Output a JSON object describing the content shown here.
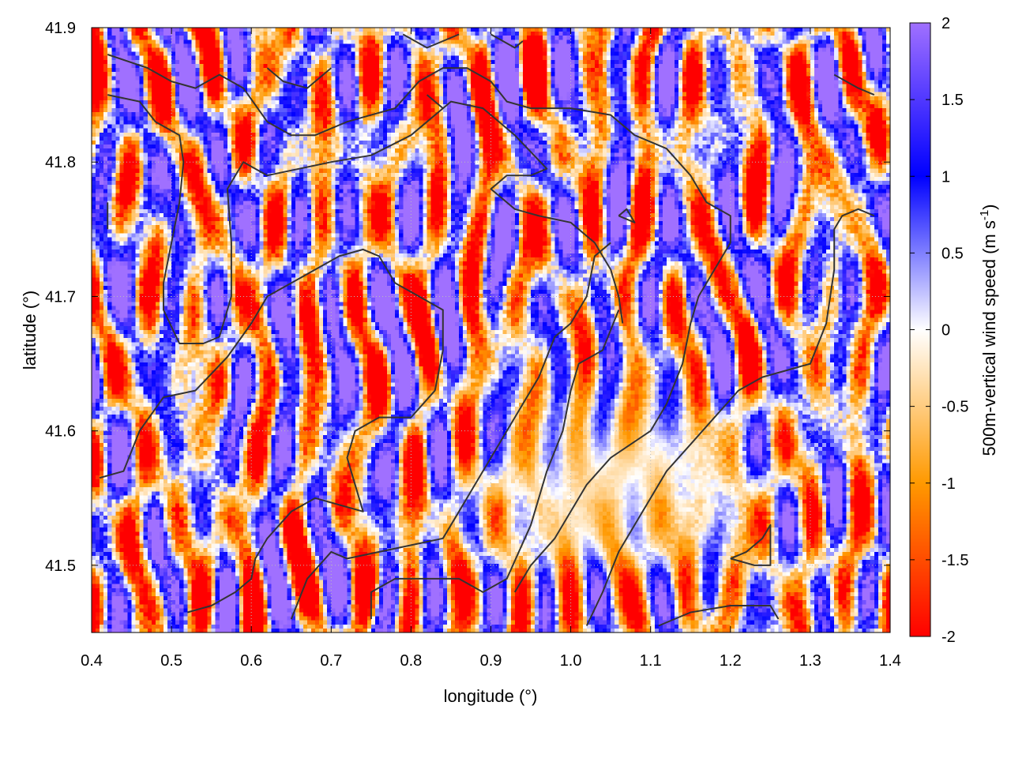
{
  "chart_data": {
    "type": "heatmap",
    "title": "",
    "xlabel": "longitude (°)",
    "ylabel": "latitude (°)",
    "xlim": [
      0.4,
      1.4
    ],
    "ylim": [
      41.45,
      41.9
    ],
    "xticks": [
      "0.4",
      "0.5",
      "0.6",
      "0.7",
      "0.8",
      "0.9",
      "1.0",
      "1.1",
      "1.2",
      "1.3",
      "1.4"
    ],
    "yticks": [
      "41.5",
      "41.6",
      "41.7",
      "41.8",
      "41.9"
    ],
    "ytick_values": [
      41.5,
      41.6,
      41.7,
      41.8,
      41.9
    ],
    "grid": true,
    "colorbar": {
      "label_main": "500m-vertical wind speed (m s",
      "label_sup": "-1",
      "label_close": ")",
      "range": [
        -2,
        2
      ],
      "ticks": [
        "2",
        "1.5",
        "1",
        "0.5",
        "0",
        "-0.5",
        "-1",
        "-1.5",
        "-2"
      ],
      "tick_values": [
        2,
        1.5,
        1,
        0.5,
        0,
        -0.5,
        -1,
        -1.5,
        -2
      ],
      "colors": {
        "minus2": "#ff0000",
        "minus1": "#ff9900",
        "zero": "#ffffff",
        "plus1": "#0000ff",
        "plus2": "#a070ff"
      }
    },
    "field_description": "Alternating bands of updrafts (blue/purple) and downdrafts (orange/red) over most of the domain; a broad weak-downdraft region (pale orange/white) in the south-central valley around lon 0.9-1.2, lat 41.47-41.65.",
    "contour_color": "#333333",
    "contours": [
      [
        [
          0.42,
          41.88
        ],
        [
          0.47,
          41.87
        ],
        [
          0.5,
          41.86
        ],
        [
          0.53,
          41.855
        ],
        [
          0.56,
          41.865
        ],
        [
          0.59,
          41.855
        ],
        [
          0.62,
          41.83
        ],
        [
          0.65,
          41.82
        ],
        [
          0.68,
          41.82
        ],
        [
          0.72,
          41.83
        ],
        [
          0.75,
          41.835
        ],
        [
          0.78,
          41.84
        ],
        [
          0.81,
          41.86
        ],
        [
          0.84,
          41.87
        ],
        [
          0.87,
          41.87
        ],
        [
          0.9,
          41.86
        ],
        [
          0.92,
          41.845
        ],
        [
          0.95,
          41.84
        ],
        [
          1.0,
          41.84
        ],
        [
          1.05,
          41.835
        ],
        [
          1.08,
          41.82
        ],
        [
          1.12,
          41.81
        ],
        [
          1.15,
          41.79
        ],
        [
          1.17,
          41.77
        ],
        [
          1.2,
          41.76
        ],
        [
          1.2,
          41.74
        ],
        [
          1.18,
          41.72
        ],
        [
          1.16,
          41.7
        ],
        [
          1.15,
          41.68
        ],
        [
          1.14,
          41.65
        ],
        [
          1.12,
          41.62
        ],
        [
          1.1,
          41.6
        ],
        [
          1.05,
          41.58
        ],
        [
          1.02,
          41.56
        ],
        [
          1.0,
          41.54
        ],
        [
          0.98,
          41.52
        ],
        [
          0.95,
          41.5
        ],
        [
          0.93,
          41.48
        ]
      ],
      [
        [
          0.62,
          41.87
        ],
        [
          0.64,
          41.86
        ],
        [
          0.67,
          41.855
        ],
        [
          0.7,
          41.87
        ]
      ],
      [
        [
          0.79,
          41.895
        ],
        [
          0.82,
          41.885
        ],
        [
          0.86,
          41.895
        ]
      ],
      [
        [
          0.9,
          41.895
        ],
        [
          0.93,
          41.885
        ],
        [
          0.94,
          41.89
        ]
      ],
      [
        [
          0.42,
          41.85
        ],
        [
          0.46,
          41.845
        ],
        [
          0.48,
          41.83
        ],
        [
          0.51,
          41.82
        ],
        [
          0.515,
          41.8
        ],
        [
          0.51,
          41.77
        ],
        [
          0.5,
          41.74
        ],
        [
          0.49,
          41.71
        ],
        [
          0.49,
          41.69
        ],
        [
          0.51,
          41.665
        ],
        [
          0.54,
          41.665
        ],
        [
          0.56,
          41.67
        ],
        [
          0.575,
          41.7
        ],
        [
          0.575,
          41.74
        ],
        [
          0.57,
          41.78
        ],
        [
          0.59,
          41.8
        ],
        [
          0.62,
          41.79
        ],
        [
          0.66,
          41.795
        ],
        [
          0.7,
          41.8
        ],
        [
          0.75,
          41.805
        ],
        [
          0.8,
          41.82
        ],
        [
          0.85,
          41.845
        ],
        [
          0.89,
          41.84
        ],
        [
          0.93,
          41.82
        ],
        [
          0.97,
          41.795
        ],
        [
          0.95,
          41.79
        ],
        [
          0.92,
          41.79
        ],
        [
          0.9,
          41.78
        ],
        [
          0.93,
          41.765
        ],
        [
          0.96,
          41.76
        ],
        [
          1.0,
          41.755
        ],
        [
          1.03,
          41.74
        ],
        [
          1.05,
          41.72
        ],
        [
          1.06,
          41.7
        ],
        [
          1.065,
          41.68
        ]
      ],
      [
        [
          0.42,
          41.75
        ],
        [
          0.42,
          41.77
        ]
      ],
      [
        [
          0.41,
          41.565
        ],
        [
          0.44,
          41.57
        ],
        [
          0.46,
          41.6
        ],
        [
          0.49,
          41.625
        ],
        [
          0.53,
          41.63
        ],
        [
          0.57,
          41.655
        ],
        [
          0.6,
          41.68
        ],
        [
          0.62,
          41.7
        ],
        [
          0.65,
          41.71
        ],
        [
          0.68,
          41.72
        ],
        [
          0.71,
          41.73
        ],
        [
          0.74,
          41.735
        ],
        [
          0.76,
          41.73
        ],
        [
          0.78,
          41.71
        ],
        [
          0.81,
          41.7
        ],
        [
          0.84,
          41.69
        ],
        [
          0.84,
          41.66
        ],
        [
          0.83,
          41.63
        ],
        [
          0.8,
          41.61
        ],
        [
          0.76,
          41.61
        ],
        [
          0.73,
          41.6
        ],
        [
          0.72,
          41.58
        ],
        [
          0.73,
          41.56
        ],
        [
          0.74,
          41.54
        ],
        [
          0.71,
          41.545
        ],
        [
          0.68,
          41.55
        ],
        [
          0.65,
          41.54
        ],
        [
          0.62,
          41.52
        ],
        [
          0.605,
          41.505
        ],
        [
          0.6,
          41.49
        ],
        [
          0.58,
          41.48
        ],
        [
          0.55,
          41.47
        ],
        [
          0.52,
          41.465
        ]
      ],
      [
        [
          0.65,
          41.46
        ],
        [
          0.67,
          41.49
        ],
        [
          0.7,
          41.51
        ],
        [
          0.72,
          41.505
        ],
        [
          0.76,
          41.51
        ],
        [
          0.8,
          41.515
        ],
        [
          0.84,
          41.52
        ],
        [
          0.86,
          41.54
        ],
        [
          0.88,
          41.56
        ],
        [
          0.9,
          41.58
        ],
        [
          0.92,
          41.6
        ],
        [
          0.94,
          41.62
        ],
        [
          0.96,
          41.64
        ],
        [
          0.98,
          41.67
        ],
        [
          1.0,
          41.68
        ],
        [
          1.02,
          41.7
        ],
        [
          1.03,
          41.73
        ],
        [
          1.05,
          41.74
        ]
      ],
      [
        [
          0.75,
          41.46
        ],
        [
          0.75,
          41.48
        ],
        [
          0.78,
          41.49
        ],
        [
          0.82,
          41.49
        ],
        [
          0.86,
          41.49
        ],
        [
          0.89,
          41.48
        ],
        [
          0.92,
          41.49
        ],
        [
          0.95,
          41.53
        ],
        [
          0.97,
          41.57
        ],
        [
          0.99,
          41.6
        ],
        [
          1.0,
          41.63
        ],
        [
          1.01,
          41.65
        ],
        [
          1.04,
          41.66
        ],
        [
          1.06,
          41.69
        ]
      ],
      [
        [
          1.02,
          41.455
        ],
        [
          1.04,
          41.48
        ],
        [
          1.06,
          41.51
        ],
        [
          1.09,
          41.54
        ],
        [
          1.12,
          41.57
        ],
        [
          1.15,
          41.59
        ],
        [
          1.18,
          41.61
        ],
        [
          1.21,
          41.63
        ],
        [
          1.24,
          41.64
        ],
        [
          1.27,
          41.645
        ],
        [
          1.3,
          41.65
        ],
        [
          1.32,
          41.68
        ],
        [
          1.33,
          41.72
        ],
        [
          1.33,
          41.75
        ],
        [
          1.34,
          41.76
        ],
        [
          1.36,
          41.765
        ],
        [
          1.38,
          41.76
        ]
      ],
      [
        [
          1.11,
          41.455
        ],
        [
          1.15,
          41.465
        ],
        [
          1.2,
          41.47
        ],
        [
          1.25,
          41.47
        ],
        [
          1.26,
          41.46
        ]
      ],
      [
        [
          1.2,
          41.505
        ],
        [
          1.23,
          41.5
        ],
        [
          1.25,
          41.5
        ],
        [
          1.25,
          41.52
        ],
        [
          1.25,
          41.53
        ],
        [
          1.24,
          41.52
        ],
        [
          1.22,
          41.51
        ],
        [
          1.2,
          41.505
        ]
      ],
      [
        [
          1.06,
          41.76
        ],
        [
          1.08,
          41.755
        ],
        [
          1.07,
          41.765
        ],
        [
          1.06,
          41.76
        ]
      ],
      [
        [
          1.33,
          41.865
        ],
        [
          1.36,
          41.855
        ],
        [
          1.38,
          41.85
        ]
      ],
      [
        [
          0.82,
          41.85
        ],
        [
          0.84,
          41.84
        ]
      ]
    ]
  }
}
